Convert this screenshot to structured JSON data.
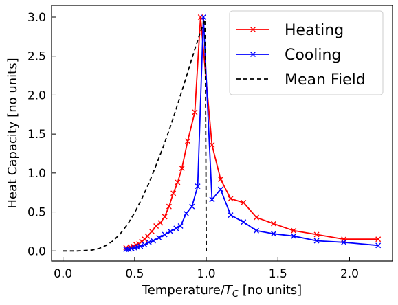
{
  "chart_data": {
    "type": "line",
    "xlabel_prefix": "Temperature/",
    "xlabel_var": "T",
    "xlabel_sub": "C",
    "xlabel_suffix": " [no units]",
    "ylabel": "Heat Capacity [no units]",
    "xlim": [
      -0.08,
      2.3
    ],
    "ylim": [
      -0.13,
      3.15
    ],
    "xticks": [
      0.0,
      0.5,
      1.0,
      1.5,
      2.0
    ],
    "xtick_labels": [
      "0.0",
      "0.5",
      "1.0",
      "1.5",
      "2.0"
    ],
    "yticks": [
      0.0,
      0.5,
      1.0,
      1.5,
      2.0,
      2.5,
      3.0
    ],
    "ytick_labels": [
      "0.0",
      "0.5",
      "1.0",
      "1.5",
      "2.0",
      "2.5",
      "3.0"
    ],
    "grid": false,
    "legend_position": "top-right",
    "series": [
      {
        "name": "Heating",
        "color": "#ff0000",
        "style": "solid",
        "marker": "x",
        "x": [
          0.44,
          0.47,
          0.49,
          0.51,
          0.53,
          0.55,
          0.57,
          0.59,
          0.62,
          0.65,
          0.68,
          0.71,
          0.74,
          0.77,
          0.8,
          0.83,
          0.87,
          0.92,
          0.96,
          1.04,
          1.1,
          1.17,
          1.26,
          1.35,
          1.47,
          1.61,
          1.77,
          1.96,
          2.2
        ],
        "y": [
          0.04,
          0.05,
          0.06,
          0.08,
          0.09,
          0.12,
          0.15,
          0.19,
          0.25,
          0.32,
          0.36,
          0.44,
          0.57,
          0.74,
          0.88,
          1.06,
          1.41,
          1.78,
          3.0,
          1.36,
          0.92,
          0.67,
          0.62,
          0.43,
          0.35,
          0.26,
          0.21,
          0.15,
          0.15
        ]
      },
      {
        "name": "Cooling",
        "color": "#0000ff",
        "style": "solid",
        "marker": "x",
        "x": [
          0.44,
          0.46,
          0.48,
          0.5,
          0.52,
          0.54,
          0.57,
          0.6,
          0.63,
          0.67,
          0.71,
          0.75,
          0.79,
          0.82,
          0.86,
          0.9,
          0.94,
          0.98,
          1.04,
          1.1,
          1.17,
          1.26,
          1.35,
          1.47,
          1.61,
          1.77,
          1.96,
          2.2
        ],
        "y": [
          0.02,
          0.02,
          0.03,
          0.04,
          0.05,
          0.06,
          0.08,
          0.11,
          0.13,
          0.17,
          0.21,
          0.25,
          0.29,
          0.32,
          0.48,
          0.57,
          0.83,
          3.0,
          0.66,
          0.79,
          0.46,
          0.37,
          0.26,
          0.22,
          0.19,
          0.13,
          0.11,
          0.07
        ]
      },
      {
        "name": "Mean Field",
        "color": "#000000",
        "style": "dashed",
        "marker": "none",
        "x": [
          0.0,
          0.1,
          0.2,
          0.25,
          0.3,
          0.35,
          0.4,
          0.45,
          0.5,
          0.55,
          0.6,
          0.65,
          0.7,
          0.75,
          0.8,
          0.85,
          0.9,
          0.95,
          0.99,
          0.995,
          1.0
        ],
        "y": [
          0.0,
          0.0,
          0.01,
          0.03,
          0.07,
          0.13,
          0.22,
          0.34,
          0.49,
          0.67,
          0.87,
          1.1,
          1.34,
          1.6,
          1.88,
          2.17,
          2.47,
          2.76,
          2.97,
          2.1,
          0.0
        ]
      }
    ]
  }
}
